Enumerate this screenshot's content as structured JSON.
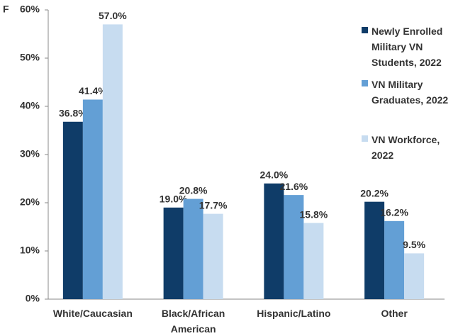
{
  "chart_data": {
    "type": "bar",
    "title": "F",
    "categories": [
      "White/Caucasian",
      "Black/African American",
      "Hispanic/Latino",
      "Other"
    ],
    "series": [
      {
        "name": "Newly Enrolled Military VN Students, 2022",
        "color": "#0f3c68",
        "values": [
          36.8,
          19.0,
          24.0,
          20.2
        ],
        "value_labels": [
          "36.8%",
          "19.0%",
          "24.0%",
          "20.2%"
        ]
      },
      {
        "name": "VN Military Graduates, 2022",
        "color": "#639fd5",
        "values": [
          41.4,
          20.8,
          21.6,
          16.2
        ],
        "value_labels": [
          "41.4%",
          "20.8%",
          "21.6%",
          "16.2%"
        ]
      },
      {
        "name": "VN Workforce, 2022",
        "color": "#c7dcf0",
        "values": [
          57.0,
          17.7,
          15.8,
          9.5
        ],
        "value_labels": [
          "57.0%",
          "17.7%",
          "15.8%",
          "9.5%"
        ]
      }
    ],
    "ylim": [
      0,
      60
    ],
    "yticks": [
      {
        "value": 0,
        "label": "0%"
      },
      {
        "value": 10,
        "label": "10%"
      },
      {
        "value": 20,
        "label": "20%"
      },
      {
        "value": 30,
        "label": "30%"
      },
      {
        "value": 40,
        "label": "40%"
      },
      {
        "value": 50,
        "label": "50%"
      },
      {
        "value": 60,
        "label": "60%"
      }
    ],
    "grid": false,
    "legend": "right"
  }
}
